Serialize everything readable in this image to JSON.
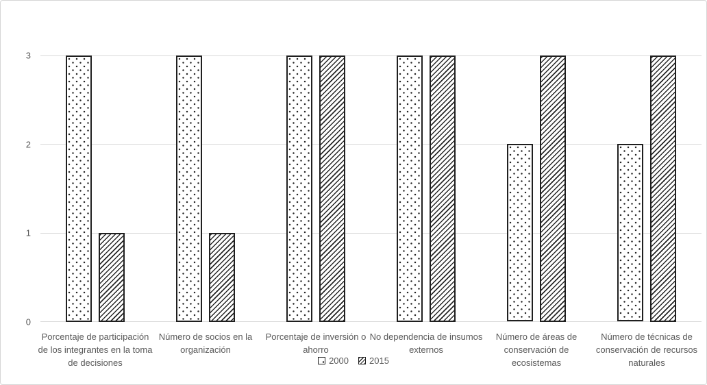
{
  "chart_data": {
    "type": "bar",
    "title": "",
    "xlabel": "",
    "ylabel": "",
    "ylim": [
      0,
      3
    ],
    "yticks": [
      0,
      1,
      2,
      3
    ],
    "grid": true,
    "legend_position": "bottom",
    "categories": [
      "Porcentaje de participación de los integrantes en la toma de decisiones",
      "Número de socios en la organización",
      "Porcentaje de inversión o ahorro",
      "No dependencia de insumos externos",
      "Número de áreas de conservación de ecosistemas",
      "Número de técnicas de conservación de recursos naturales"
    ],
    "series": [
      {
        "name": "2000",
        "pattern": "dots",
        "values": [
          3,
          3,
          3,
          3,
          2,
          2
        ]
      },
      {
        "name": "2015",
        "pattern": "diagonal-hatch",
        "values": [
          1,
          1,
          3,
          3,
          3,
          3
        ]
      }
    ],
    "colors": {
      "bar_fill": "#ffffff",
      "bar_border": "#1f1f1f",
      "pattern_ink": "#262626",
      "gridline": "#d9d9d9",
      "axis_text": "#595959",
      "background": "#ffffff",
      "figure_border": "#d6d6d6"
    }
  }
}
